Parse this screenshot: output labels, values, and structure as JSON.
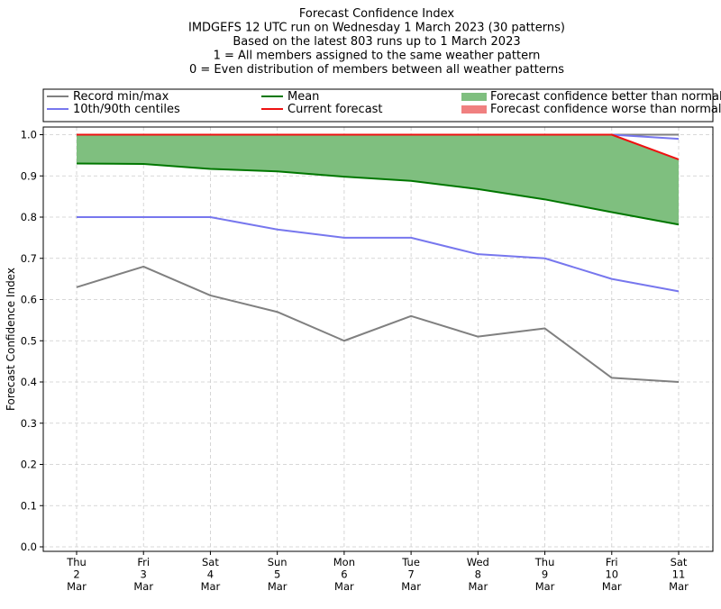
{
  "chart_data": {
    "type": "line",
    "title_lines": [
      "Forecast Confidence Index",
      "IMDGEFS 12 UTC run on Wednesday 1 March 2023 (30 patterns)",
      "Based on the latest 803 runs up to 1 March 2023",
      "1 = All members assigned to the same weather pattern",
      "0 = Even distribution of members between all weather patterns"
    ],
    "ylabel": "Forecast Confidence Index",
    "ylim": [
      0,
      1.0
    ],
    "yticks": [
      "0.0",
      "0.1",
      "0.2",
      "0.3",
      "0.4",
      "0.5",
      "0.6",
      "0.7",
      "0.8",
      "0.9",
      "1.0"
    ],
    "grid": true,
    "categories": [
      [
        "Thu",
        "2",
        "Mar"
      ],
      [
        "Fri",
        "3",
        "Mar"
      ],
      [
        "Sat",
        "4",
        "Mar"
      ],
      [
        "Sun",
        "5",
        "Mar"
      ],
      [
        "Mon",
        "6",
        "Mar"
      ],
      [
        "Tue",
        "7",
        "Mar"
      ],
      [
        "Wed",
        "8",
        "Mar"
      ],
      [
        "Thu",
        "9",
        "Mar"
      ],
      [
        "Fri",
        "10",
        "Mar"
      ],
      [
        "Sat",
        "11",
        "Mar"
      ]
    ],
    "series": [
      {
        "key": "record_max",
        "name": "Record min/max",
        "color": "#808080",
        "values": [
          1.0,
          1.0,
          1.0,
          1.0,
          1.0,
          1.0,
          1.0,
          1.0,
          1.0,
          1.0
        ]
      },
      {
        "key": "record_min",
        "name": "Record min/max",
        "color": "#808080",
        "values": [
          0.63,
          0.68,
          0.61,
          0.57,
          0.5,
          0.56,
          0.51,
          0.53,
          0.41,
          0.4
        ]
      },
      {
        "key": "p90",
        "name": "10th/90th centiles",
        "color": "#7777ee",
        "values": [
          1.0,
          1.0,
          1.0,
          1.0,
          1.0,
          1.0,
          1.0,
          1.0,
          1.0,
          0.99
        ]
      },
      {
        "key": "p10",
        "name": "10th/90th centiles",
        "color": "#7777ee",
        "values": [
          0.8,
          0.8,
          0.8,
          0.77,
          0.75,
          0.75,
          0.71,
          0.7,
          0.65,
          0.62
        ]
      },
      {
        "key": "mean",
        "name": "Mean",
        "color": "#007700",
        "values": [
          0.93,
          0.929,
          0.917,
          0.911,
          0.898,
          0.888,
          0.868,
          0.843,
          0.812,
          0.782
        ]
      },
      {
        "key": "current",
        "name": "Current forecast",
        "color": "#ee1111",
        "values": [
          1.0,
          1.0,
          1.0,
          1.0,
          1.0,
          1.0,
          1.0,
          1.0,
          1.0,
          0.94
        ]
      }
    ],
    "fill_better_color": "#7fbf7f",
    "fill_worse_color": "#f08080",
    "legend": {
      "placement": "top",
      "entries": [
        {
          "label": "Record min/max",
          "kind": "line",
          "color": "#808080"
        },
        {
          "label": "10th/90th centiles",
          "kind": "line",
          "color": "#7777ee"
        },
        {
          "label": "Mean",
          "kind": "line",
          "color": "#007700"
        },
        {
          "label": "Current forecast",
          "kind": "line",
          "color": "#ee1111"
        },
        {
          "label": "Forecast confidence better than normal",
          "kind": "patch",
          "color": "#7fbf7f"
        },
        {
          "label": "Forecast confidence worse than normal",
          "kind": "patch",
          "color": "#f08080"
        }
      ]
    }
  }
}
